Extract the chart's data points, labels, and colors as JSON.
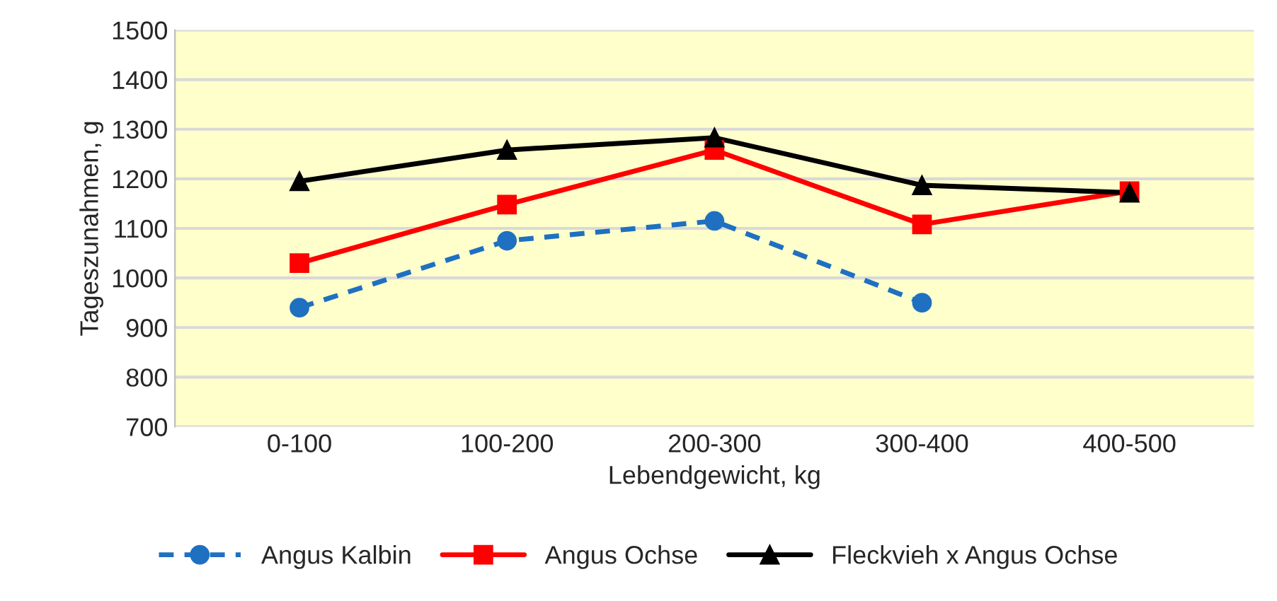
{
  "chart_data": {
    "type": "line",
    "xlabel": "Lebendgewicht, kg",
    "ylabel": "Tageszunahmen, g",
    "categories": [
      "0-100",
      "100-200",
      "200-300",
      "300-400",
      "400-500"
    ],
    "series": [
      {
        "name": "Angus Kalbin",
        "color": "#1f70c1",
        "marker": "circle",
        "line_style": "dashed",
        "values": [
          940,
          1075,
          1115,
          950,
          null
        ]
      },
      {
        "name": "Angus Ochse",
        "color": "#ff0000",
        "marker": "square",
        "line_style": "solid",
        "values": [
          1030,
          1148,
          1258,
          1108,
          1175
        ]
      },
      {
        "name": "Fleckvieh x Angus Ochse",
        "color": "#000000",
        "marker": "triangle",
        "line_style": "solid",
        "values": [
          1195,
          1258,
          1283,
          1187,
          1172
        ]
      }
    ],
    "ylim": [
      700,
      1500
    ],
    "yticks": [
      700,
      800,
      900,
      1000,
      1100,
      1200,
      1300,
      1400,
      1500
    ],
    "grid": "y",
    "legend": "bottom"
  }
}
